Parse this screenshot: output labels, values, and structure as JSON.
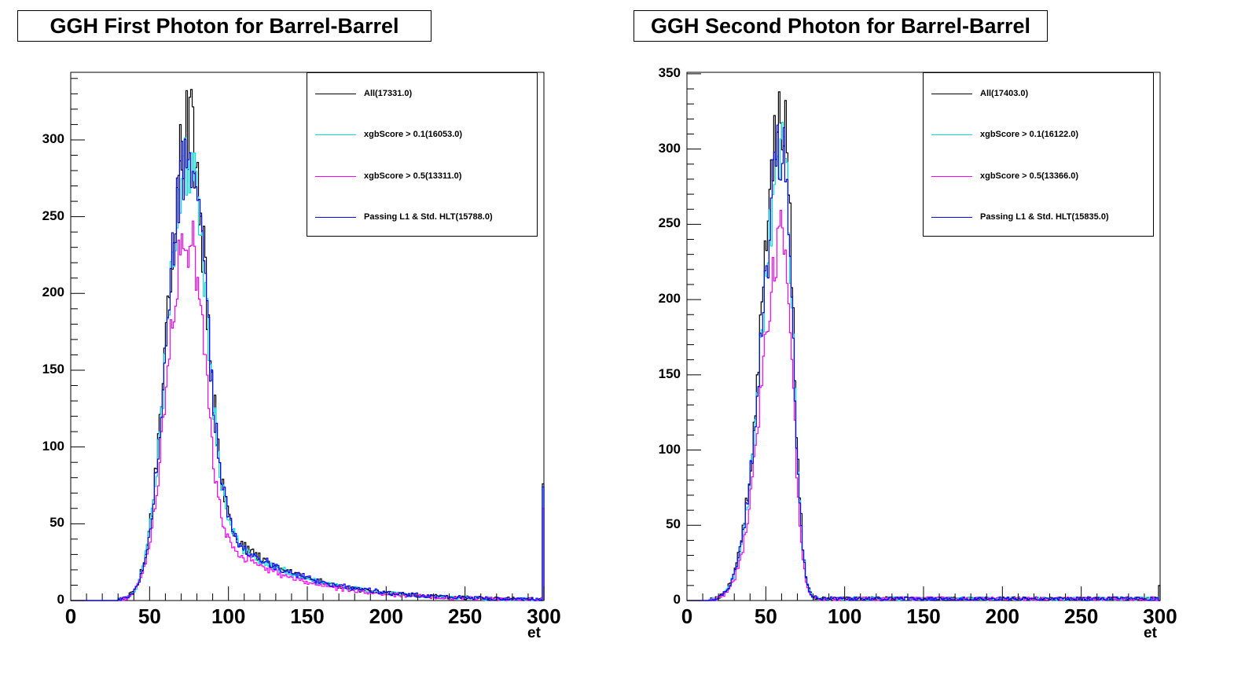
{
  "chart_data": [
    {
      "type": "histogram",
      "title": "GGH First Photon for Barrel-Barrel",
      "xlabel": "et",
      "ylabel": "",
      "xlim": [
        0,
        300
      ],
      "ylim": [
        0,
        344
      ],
      "x_ticks": [
        "0",
        "50",
        "100",
        "150",
        "200",
        "250",
        "300"
      ],
      "y_ticks": [
        "0",
        "50",
        "100",
        "150",
        "200",
        "250",
        "300"
      ],
      "grid": false,
      "legend_position": "top-right",
      "bin_width": 1,
      "series": [
        {
          "name": "All(17331.0)",
          "color": "#000000",
          "peak_x": 73,
          "peak_y": 300,
          "sigma_left": 12,
          "sigma_right": 11,
          "tail_amp": 55,
          "tail_scale": 48,
          "threshold": 30,
          "cutoff": 300,
          "overflow_y": 76,
          "noise": 0.1
        },
        {
          "name": "xgbScore > 0.1(16053.0)",
          "color": "#00dede",
          "peak_x": 73,
          "peak_y": 280,
          "sigma_left": 12,
          "sigma_right": 11,
          "tail_amp": 52,
          "tail_scale": 48,
          "threshold": 30,
          "cutoff": 300,
          "overflow_y": 74,
          "noise": 0.09
        },
        {
          "name": "xgbScore > 0.5(13311.0)",
          "color": "#ff00ff",
          "peak_x": 73,
          "peak_y": 235,
          "sigma_left": 12,
          "sigma_right": 10,
          "tail_amp": 45,
          "tail_scale": 48,
          "threshold": 30,
          "cutoff": 300,
          "overflow_y": 60,
          "noise": 0.09
        },
        {
          "name": "Passing L1 & Std. HLT(15788.0)",
          "color": "#0000ff",
          "peak_x": 73,
          "peak_y": 285,
          "sigma_left": 12,
          "sigma_right": 11,
          "tail_amp": 54,
          "tail_scale": 48,
          "threshold": 30,
          "cutoff": 300,
          "overflow_y": 74,
          "noise": 0.09
        }
      ]
    },
    {
      "type": "histogram",
      "title": "GGH Second Photon for Barrel-Barrel",
      "xlabel": "et",
      "ylabel": "",
      "xlim": [
        0,
        300
      ],
      "ylim": [
        0,
        351
      ],
      "x_ticks": [
        "0",
        "50",
        "100",
        "150",
        "200",
        "250",
        "300"
      ],
      "y_ticks": [
        "0",
        "50",
        "100",
        "150",
        "200",
        "250",
        "300",
        "350"
      ],
      "grid": false,
      "legend_position": "top-right",
      "bin_width": 1,
      "series": [
        {
          "name": "All(17403.0)",
          "color": "#000000",
          "peak_x": 61,
          "peak_y": 325,
          "sigma_left": 13,
          "sigma_right": 6,
          "tail_amp": 0,
          "tail_scale": 10,
          "threshold": 14,
          "cutoff": 300,
          "overflow_y": 10,
          "noise": 0.1
        },
        {
          "name": "xgbScore > 0.1(16122.0)",
          "color": "#00dede",
          "peak_x": 61,
          "peak_y": 300,
          "sigma_left": 13,
          "sigma_right": 6,
          "tail_amp": 0,
          "tail_scale": 10,
          "threshold": 14,
          "cutoff": 300,
          "overflow_y": 0,
          "noise": 0.09
        },
        {
          "name": "xgbScore > 0.5(13366.0)",
          "color": "#ff00ff",
          "peak_x": 61,
          "peak_y": 245,
          "sigma_left": 13,
          "sigma_right": 6,
          "tail_amp": 0,
          "tail_scale": 10,
          "threshold": 14,
          "cutoff": 300,
          "overflow_y": 0,
          "noise": 0.09
        },
        {
          "name": "Passing L1 & Std. HLT(15835.0)",
          "color": "#0000ff",
          "peak_x": 61,
          "peak_y": 305,
          "sigma_left": 13,
          "sigma_right": 6,
          "tail_amp": 0,
          "tail_scale": 10,
          "threshold": 14,
          "cutoff": 300,
          "overflow_y": 0,
          "noise": 0.09
        }
      ]
    }
  ]
}
